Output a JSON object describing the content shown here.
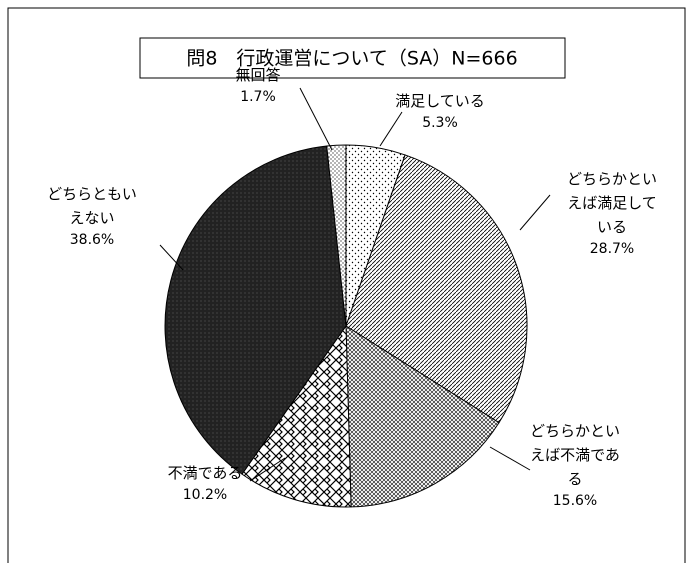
{
  "chart_data": {
    "type": "pie",
    "title": "問8　行政運営について（SA）N=666",
    "categories": [
      "満足している",
      "どちらかといえば満足している",
      "どちらかといえば不満である",
      "不満である",
      "どちらともいえない",
      "無回答"
    ],
    "values": [
      5.3,
      28.7,
      15.6,
      10.2,
      38.6,
      1.7
    ],
    "value_labels": [
      "5.3%",
      "28.7%",
      "15.6%",
      "10.2%",
      "38.6%",
      "1.7%"
    ]
  }
}
